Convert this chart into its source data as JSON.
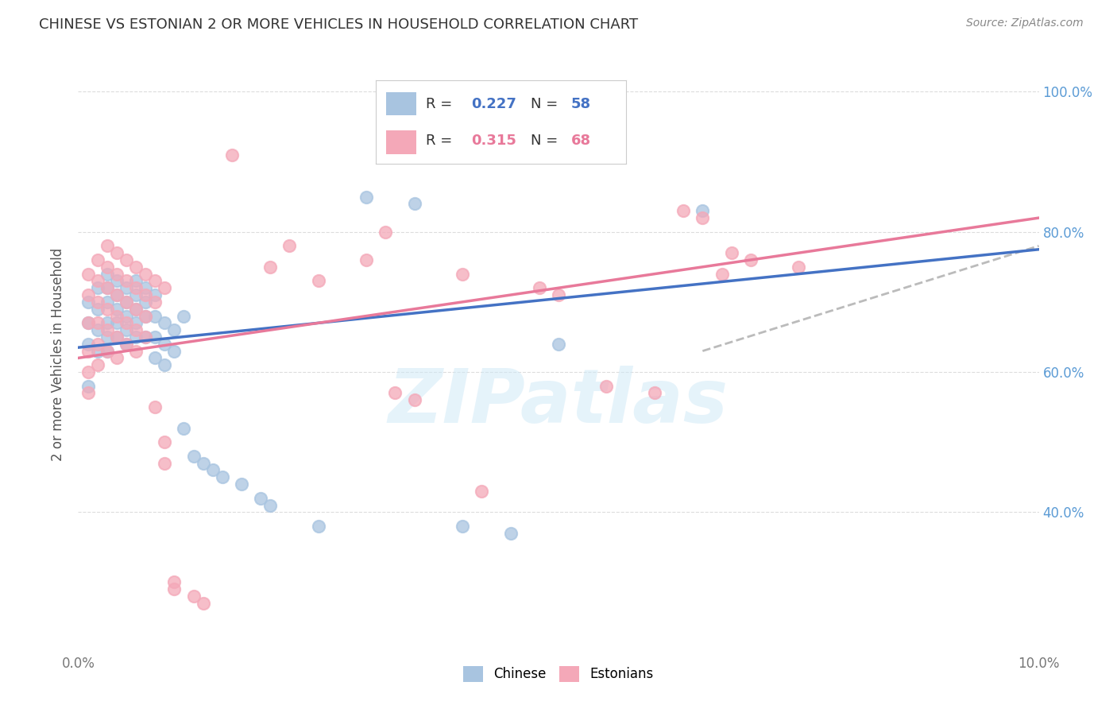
{
  "title": "CHINESE VS ESTONIAN 2 OR MORE VEHICLES IN HOUSEHOLD CORRELATION CHART",
  "source": "Source: ZipAtlas.com",
  "ylabel_text": "2 or more Vehicles in Household",
  "x_min": 0.0,
  "x_max": 0.1,
  "y_min": 0.2,
  "y_max": 1.05,
  "x_tick_pos": [
    0.0,
    0.02,
    0.04,
    0.06,
    0.08,
    0.1
  ],
  "x_tick_labels": [
    "0.0%",
    "",
    "",
    "",
    "",
    "10.0%"
  ],
  "y_tick_pos": [
    0.4,
    0.6,
    0.8,
    1.0
  ],
  "y_tick_labels": [
    "40.0%",
    "60.0%",
    "80.0%",
    "100.0%"
  ],
  "chinese_color": "#a8c4e0",
  "estonian_color": "#f4a8b8",
  "chinese_line_color": "#4472c4",
  "estonian_line_color": "#e8799a",
  "trend_dashed_color": "#bbbbbb",
  "R_chinese": 0.227,
  "N_chinese": 58,
  "R_estonian": 0.315,
  "N_estonian": 68,
  "watermark": "ZIPatlas",
  "chinese_R_color": "#4472c4",
  "estonian_R_color": "#e8799a",
  "legend_border_color": "#cccccc",
  "grid_color": "#dddddd",
  "right_tick_color": "#5b9bd5",
  "chinese_points": [
    [
      0.001,
      0.64
    ],
    [
      0.001,
      0.67
    ],
    [
      0.001,
      0.7
    ],
    [
      0.001,
      0.58
    ],
    [
      0.002,
      0.72
    ],
    [
      0.002,
      0.69
    ],
    [
      0.002,
      0.66
    ],
    [
      0.002,
      0.63
    ],
    [
      0.003,
      0.74
    ],
    [
      0.003,
      0.72
    ],
    [
      0.003,
      0.7
    ],
    [
      0.003,
      0.67
    ],
    [
      0.003,
      0.65
    ],
    [
      0.003,
      0.63
    ],
    [
      0.004,
      0.73
    ],
    [
      0.004,
      0.71
    ],
    [
      0.004,
      0.69
    ],
    [
      0.004,
      0.67
    ],
    [
      0.004,
      0.65
    ],
    [
      0.005,
      0.72
    ],
    [
      0.005,
      0.7
    ],
    [
      0.005,
      0.68
    ],
    [
      0.005,
      0.66
    ],
    [
      0.005,
      0.64
    ],
    [
      0.006,
      0.73
    ],
    [
      0.006,
      0.71
    ],
    [
      0.006,
      0.69
    ],
    [
      0.006,
      0.67
    ],
    [
      0.006,
      0.65
    ],
    [
      0.007,
      0.72
    ],
    [
      0.007,
      0.7
    ],
    [
      0.007,
      0.68
    ],
    [
      0.007,
      0.65
    ],
    [
      0.008,
      0.71
    ],
    [
      0.008,
      0.68
    ],
    [
      0.008,
      0.65
    ],
    [
      0.008,
      0.62
    ],
    [
      0.009,
      0.67
    ],
    [
      0.009,
      0.64
    ],
    [
      0.009,
      0.61
    ],
    [
      0.01,
      0.66
    ],
    [
      0.01,
      0.63
    ],
    [
      0.011,
      0.68
    ],
    [
      0.011,
      0.52
    ],
    [
      0.012,
      0.48
    ],
    [
      0.013,
      0.47
    ],
    [
      0.014,
      0.46
    ],
    [
      0.015,
      0.45
    ],
    [
      0.017,
      0.44
    ],
    [
      0.019,
      0.42
    ],
    [
      0.02,
      0.41
    ],
    [
      0.025,
      0.38
    ],
    [
      0.03,
      0.85
    ],
    [
      0.035,
      0.84
    ],
    [
      0.04,
      0.38
    ],
    [
      0.045,
      0.37
    ],
    [
      0.05,
      0.64
    ],
    [
      0.065,
      0.83
    ]
  ],
  "estonian_points": [
    [
      0.001,
      0.74
    ],
    [
      0.001,
      0.71
    ],
    [
      0.001,
      0.67
    ],
    [
      0.001,
      0.63
    ],
    [
      0.001,
      0.6
    ],
    [
      0.001,
      0.57
    ],
    [
      0.002,
      0.76
    ],
    [
      0.002,
      0.73
    ],
    [
      0.002,
      0.7
    ],
    [
      0.002,
      0.67
    ],
    [
      0.002,
      0.64
    ],
    [
      0.002,
      0.61
    ],
    [
      0.003,
      0.78
    ],
    [
      0.003,
      0.75
    ],
    [
      0.003,
      0.72
    ],
    [
      0.003,
      0.69
    ],
    [
      0.003,
      0.66
    ],
    [
      0.003,
      0.63
    ],
    [
      0.004,
      0.77
    ],
    [
      0.004,
      0.74
    ],
    [
      0.004,
      0.71
    ],
    [
      0.004,
      0.68
    ],
    [
      0.004,
      0.65
    ],
    [
      0.004,
      0.62
    ],
    [
      0.005,
      0.76
    ],
    [
      0.005,
      0.73
    ],
    [
      0.005,
      0.7
    ],
    [
      0.005,
      0.67
    ],
    [
      0.005,
      0.64
    ],
    [
      0.006,
      0.75
    ],
    [
      0.006,
      0.72
    ],
    [
      0.006,
      0.69
    ],
    [
      0.006,
      0.66
    ],
    [
      0.006,
      0.63
    ],
    [
      0.007,
      0.74
    ],
    [
      0.007,
      0.71
    ],
    [
      0.007,
      0.68
    ],
    [
      0.007,
      0.65
    ],
    [
      0.008,
      0.73
    ],
    [
      0.008,
      0.7
    ],
    [
      0.008,
      0.55
    ],
    [
      0.009,
      0.72
    ],
    [
      0.009,
      0.5
    ],
    [
      0.009,
      0.47
    ],
    [
      0.01,
      0.3
    ],
    [
      0.01,
      0.29
    ],
    [
      0.012,
      0.28
    ],
    [
      0.013,
      0.27
    ],
    [
      0.016,
      0.91
    ],
    [
      0.02,
      0.75
    ],
    [
      0.022,
      0.78
    ],
    [
      0.025,
      0.73
    ],
    [
      0.03,
      0.76
    ],
    [
      0.032,
      0.8
    ],
    [
      0.033,
      0.57
    ],
    [
      0.035,
      0.56
    ],
    [
      0.04,
      0.74
    ],
    [
      0.042,
      0.43
    ],
    [
      0.048,
      0.72
    ],
    [
      0.05,
      0.71
    ],
    [
      0.055,
      0.58
    ],
    [
      0.06,
      0.57
    ],
    [
      0.063,
      0.83
    ],
    [
      0.065,
      0.82
    ],
    [
      0.067,
      0.74
    ],
    [
      0.068,
      0.77
    ],
    [
      0.07,
      0.76
    ],
    [
      0.075,
      0.75
    ]
  ]
}
